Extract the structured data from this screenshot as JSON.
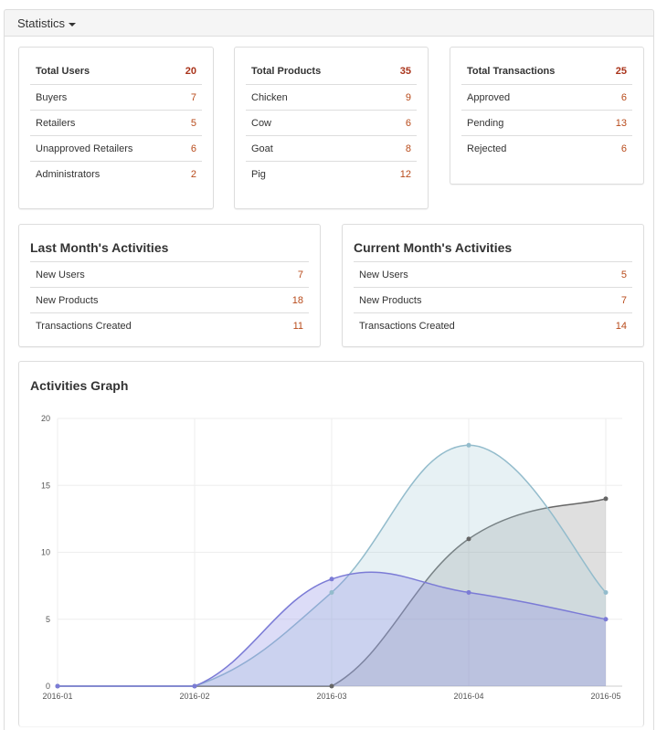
{
  "panel": {
    "title": "Statistics"
  },
  "summary": [
    {
      "title": "Total Users",
      "total": "20",
      "rows": [
        {
          "label": "Buyers",
          "value": "7"
        },
        {
          "label": "Retailers",
          "value": "5"
        },
        {
          "label": "Unapproved Retailers",
          "value": "6"
        },
        {
          "label": "Administrators",
          "value": "2"
        }
      ]
    },
    {
      "title": "Total Products",
      "total": "35",
      "rows": [
        {
          "label": "Chicken",
          "value": "9"
        },
        {
          "label": "Cow",
          "value": "6"
        },
        {
          "label": "Goat",
          "value": "8"
        },
        {
          "label": "Pig",
          "value": "12"
        }
      ]
    },
    {
      "title": "Total Transactions",
      "total": "25",
      "rows": [
        {
          "label": "Approved",
          "value": "6"
        },
        {
          "label": "Pending",
          "value": "13"
        },
        {
          "label": "Rejected",
          "value": "6"
        }
      ]
    }
  ],
  "activities": [
    {
      "title": "Last Month's Activities",
      "rows": [
        {
          "label": "New Users",
          "value": "7"
        },
        {
          "label": "New Products",
          "value": "18"
        },
        {
          "label": "Transactions Created",
          "value": "11"
        }
      ]
    },
    {
      "title": "Current Month's Activities",
      "rows": [
        {
          "label": "New Users",
          "value": "5"
        },
        {
          "label": "New Products",
          "value": "7"
        },
        {
          "label": "Transactions Created",
          "value": "14"
        }
      ]
    }
  ],
  "graph": {
    "title": "Activities Graph"
  },
  "colors": {
    "accent": "#b84a1a",
    "total": "#a9331a"
  },
  "chart_data": {
    "type": "area",
    "x": [
      "2016-01",
      "2016-02",
      "2016-03",
      "2016-04",
      "2016-05"
    ],
    "ylim": [
      0,
      20
    ],
    "yticks": [
      "0",
      "5",
      "10",
      "15",
      "20"
    ],
    "series": [
      {
        "values": [
          0,
          0,
          8,
          7,
          5
        ],
        "color": "#7b7bd6",
        "fill": "rgba(140,140,230,0.30)"
      },
      {
        "values": [
          0,
          0,
          7,
          18,
          7
        ],
        "color": "#93bccc",
        "fill": "rgba(170,205,215,0.28)"
      },
      {
        "values": [
          0,
          0,
          0,
          11,
          14
        ],
        "color": "#666666",
        "fill": "rgba(110,110,110,0.22)"
      }
    ],
    "grid": true
  }
}
